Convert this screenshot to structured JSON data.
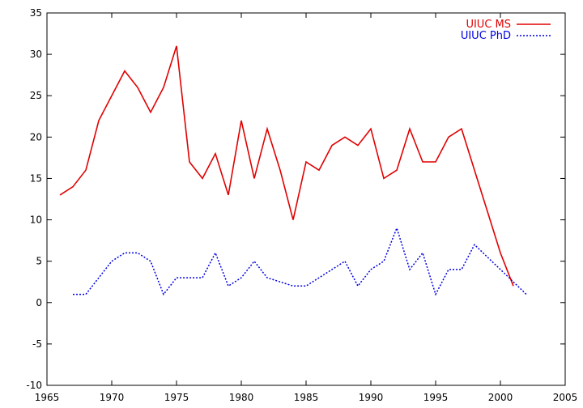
{
  "chart_data": {
    "type": "line",
    "title": "",
    "xlabel": "",
    "ylabel": "",
    "xlim": [
      1965,
      2005
    ],
    "ylim": [
      -10,
      35
    ],
    "xticks": [
      1965,
      1970,
      1975,
      1980,
      1985,
      1990,
      1995,
      2000,
      2005
    ],
    "yticks": [
      -10,
      -5,
      0,
      5,
      10,
      15,
      20,
      25,
      30,
      35
    ],
    "grid": false,
    "legend_position": "top-right",
    "series": [
      {
        "name": "UIUC MS",
        "color": "#e00000",
        "style": "solid",
        "x": [
          1966,
          1967,
          1968,
          1969,
          1970,
          1971,
          1972,
          1973,
          1974,
          1975,
          1976,
          1977,
          1978,
          1979,
          1980,
          1981,
          1982,
          1983,
          1984,
          1985,
          1986,
          1987,
          1988,
          1989,
          1990,
          1991,
          1992,
          1993,
          1994,
          1995,
          1996,
          1997,
          1998,
          1999,
          2000,
          2001
        ],
        "values": [
          13,
          14,
          16,
          22,
          25,
          28,
          26,
          23,
          26,
          31,
          17,
          15,
          18,
          13,
          22,
          15,
          21,
          16,
          10,
          17,
          16,
          19,
          20,
          19,
          21,
          15,
          16,
          21,
          17,
          17,
          20,
          21,
          16,
          11,
          6,
          2
        ]
      },
      {
        "name": "UIUC PhD",
        "color": "#0000e0",
        "style": "dotted",
        "x": [
          1967,
          1968,
          1969,
          1970,
          1971,
          1972,
          1973,
          1974,
          1975,
          1976,
          1977,
          1978,
          1979,
          1980,
          1981,
          1982,
          1983,
          1984,
          1985,
          1986,
          1987,
          1988,
          1989,
          1990,
          1991,
          1992,
          1993,
          1994,
          1995,
          1996,
          1997,
          1998,
          1999,
          2000,
          2001,
          2002
        ],
        "values": [
          1,
          1,
          3,
          5,
          6,
          6,
          5,
          1,
          3,
          3,
          3,
          6,
          2,
          3,
          5,
          3,
          2.5,
          2,
          2,
          3,
          4,
          5,
          2,
          4,
          5,
          9,
          4,
          6,
          1,
          4,
          4,
          7,
          5.5,
          4,
          2.5,
          1
        ]
      }
    ]
  }
}
